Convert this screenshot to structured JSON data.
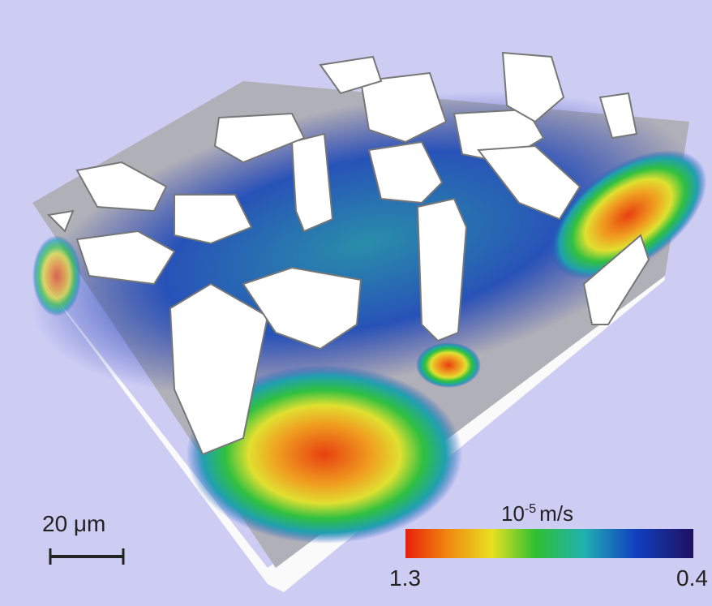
{
  "scale_bar": {
    "label": "20 μm"
  },
  "colorbar": {
    "title_base": "10",
    "title_exponent": "-5",
    "title_unit": "m/s",
    "left_label": "1.3",
    "right_label": "0.4"
  }
}
